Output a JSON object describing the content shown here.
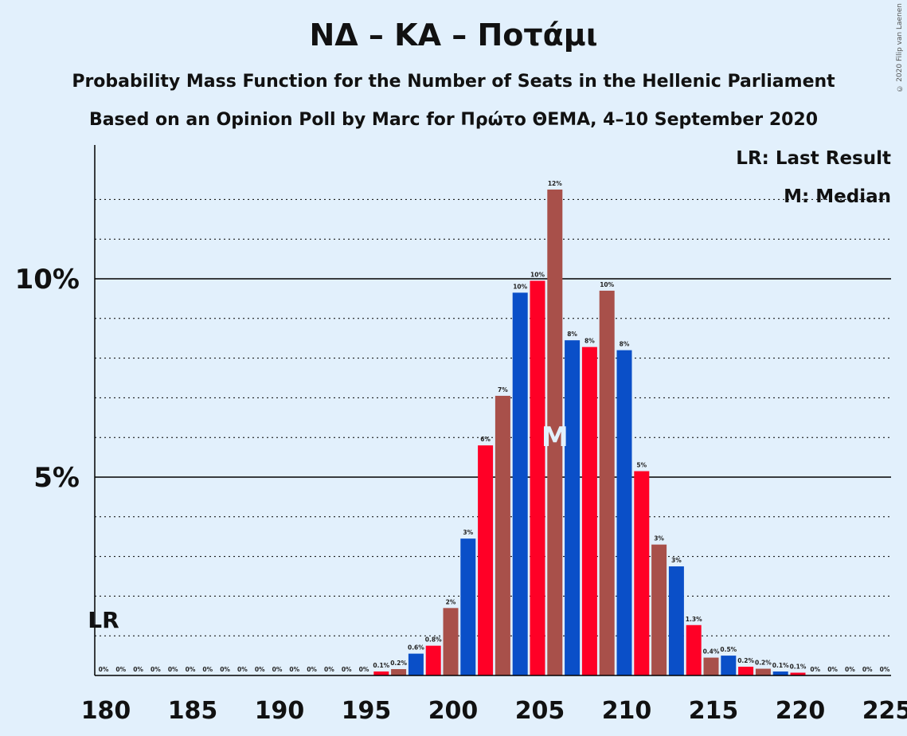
{
  "title": "ΝΔ – ΚΑ – Ποτάμι",
  "subtitle1": "Probability Mass Function for the Number of Seats in the Hellenic Parliament",
  "subtitle2": "Based on an Opinion Poll by Marc for Πρώτο ΘΕΜΑ, 4–10 September 2020",
  "copyright": "© 2020 Filip van Laenen",
  "legend": {
    "lr": "LR: Last Result",
    "median": "M: Median"
  },
  "markers": {
    "lr_label": "LR",
    "lr_seat": 180,
    "median_label": "M",
    "median_seat": 206
  },
  "colors": {
    "blue": "#0a4fc8",
    "red": "#ff0026",
    "brown": "#a8504a",
    "background": "#e2f0fc"
  },
  "chart_data": {
    "type": "bar",
    "x_ticks": [
      "180",
      "185",
      "190",
      "195",
      "200",
      "205",
      "210",
      "215",
      "220",
      "225"
    ],
    "y_ticks": [
      "5%",
      "10%"
    ],
    "xlim": [
      180,
      225
    ],
    "ylim": [
      0,
      13
    ],
    "seats": [
      180,
      181,
      182,
      183,
      184,
      185,
      186,
      187,
      188,
      189,
      190,
      191,
      192,
      193,
      194,
      195,
      196,
      197,
      198,
      199,
      200,
      201,
      202,
      203,
      204,
      205,
      206,
      207,
      208,
      209,
      210,
      211,
      212,
      213,
      214,
      215,
      216,
      217,
      218,
      219,
      220,
      221,
      222,
      223,
      224,
      225
    ],
    "values": [
      0,
      0,
      0,
      0,
      0,
      0,
      0,
      0,
      0,
      0,
      0,
      0,
      0,
      0,
      0,
      0,
      0.1,
      0.16,
      0.55,
      0.75,
      1.7,
      3.45,
      5.8,
      7.05,
      9.65,
      9.95,
      12.25,
      8.45,
      8.28,
      9.7,
      8.2,
      5.15,
      3.3,
      2.75,
      1.27,
      0.45,
      0.5,
      0.22,
      0.17,
      0.1,
      0.07,
      0,
      0,
      0,
      0,
      0
    ],
    "labels": [
      "0%",
      "0%",
      "0%",
      "0%",
      "0%",
      "0%",
      "0%",
      "0%",
      "0%",
      "0%",
      "0%",
      "0%",
      "0%",
      "0%",
      "0%",
      "0%",
      "0.1%",
      "0.2%",
      "0.6%",
      "0.8%",
      "2%",
      "3%",
      "6%",
      "7%",
      "10%",
      "10%",
      "12%",
      "8%",
      "8%",
      "10%",
      "8%",
      "5%",
      "3%",
      "3%",
      "1.3%",
      "0.4%",
      "0.5%",
      "0.2%",
      "0.2%",
      "0.1%",
      "0.1%",
      "0%",
      "0%",
      "0%",
      "0%",
      "0%"
    ],
    "bar_colors": [
      "blue",
      "red",
      "brown",
      "blue",
      "red",
      "brown",
      "blue",
      "red",
      "brown",
      "blue",
      "red",
      "brown",
      "blue",
      "red",
      "brown",
      "blue",
      "red",
      "brown",
      "blue",
      "red",
      "brown",
      "blue",
      "red",
      "brown",
      "blue",
      "red",
      "brown",
      "blue",
      "red",
      "brown",
      "blue",
      "red",
      "brown",
      "blue",
      "red",
      "brown",
      "blue",
      "red",
      "brown",
      "blue",
      "red",
      "brown",
      "blue",
      "red",
      "brown",
      "blue"
    ]
  }
}
